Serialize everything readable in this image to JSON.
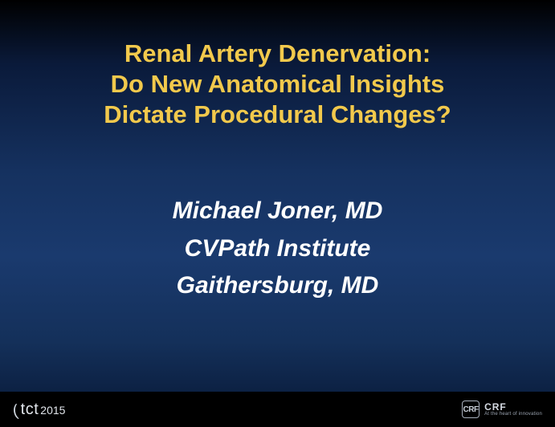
{
  "slide": {
    "background_gradient": [
      "#000000",
      "#0a1a3a",
      "#15315f",
      "#1a3a6e",
      "#14305a",
      "#0a1d3d",
      "#000000"
    ],
    "title": {
      "lines": [
        "Renal Artery Denervation:",
        "Do New Anatomical Insights",
        "Dictate Procedural Changes?"
      ],
      "color": "#f2c94c",
      "font_size_pt": 31,
      "font_weight": "bold",
      "font_style": "normal",
      "align": "center"
    },
    "author": {
      "lines": [
        "Michael Joner, MD",
        "CVPath Institute",
        "Gaithersburg, MD"
      ],
      "color": "#ffffff",
      "font_size_pt": 30,
      "font_weight": "bold",
      "font_style": "italic",
      "align": "center"
    },
    "footer": {
      "background_color": "#000000",
      "left": {
        "brand": "tct",
        "year": "2015",
        "color": "#e0e4ea"
      },
      "right": {
        "badge_text": "CRF",
        "org": "CRF",
        "tagline": "At the heart of innovation",
        "color": "#c9cfd8"
      }
    }
  }
}
